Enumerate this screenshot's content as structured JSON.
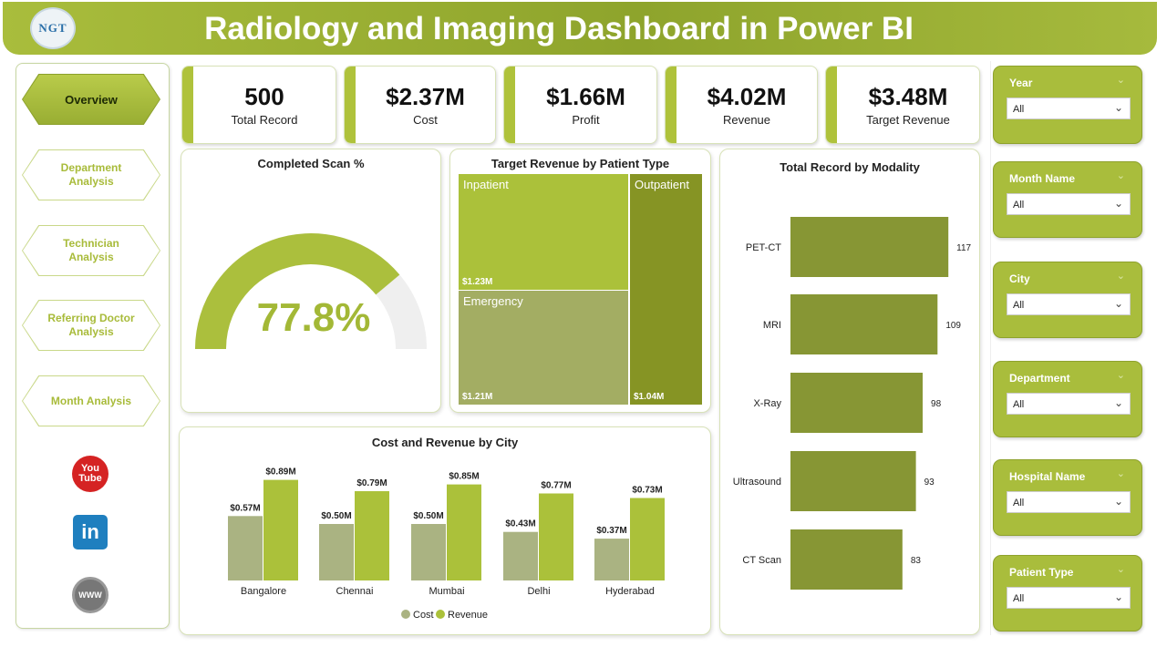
{
  "header": {
    "title": "Radiology and Imaging Dashboard in Power BI",
    "logo_text": "NGT"
  },
  "nav": {
    "items": [
      {
        "label": "Overview",
        "active": true
      },
      {
        "label": "Department Analysis",
        "active": false
      },
      {
        "label": "Technician Analysis",
        "active": false
      },
      {
        "label": "Referring Doctor Analysis",
        "active": false
      },
      {
        "label": "Month Analysis",
        "active": false
      }
    ],
    "social": {
      "youtube_icon": "youtube-icon",
      "linkedin_icon": "linkedin-icon",
      "web_icon": "globe-icon"
    },
    "youtube_text": "You Tube",
    "linkedin_text": "in",
    "web_text": "WWW"
  },
  "kpis": [
    {
      "value": "500",
      "label": "Total Record"
    },
    {
      "value": "$2.37M",
      "label": "Cost"
    },
    {
      "value": "$1.66M",
      "label": "Profit"
    },
    {
      "value": "$4.02M",
      "label": "Revenue"
    },
    {
      "value": "$3.48M",
      "label": "Target Revenue"
    }
  ],
  "gauge": {
    "title": "Completed Scan %",
    "value_text": "77.8%",
    "value": 77.8,
    "max": 100
  },
  "treemap": {
    "title": "Target Revenue by Patient Type",
    "items": [
      {
        "name": "Inpatient",
        "amount": "$1.23M"
      },
      {
        "name": "Emergency",
        "amount": "$1.21M"
      },
      {
        "name": "Outpatient",
        "amount": "$1.04M"
      }
    ]
  },
  "modality": {
    "title": "Total Record by Modality"
  },
  "city_chart": {
    "title": "Cost and Revenue by City"
  },
  "slicers": [
    {
      "label": "Year",
      "value": "All"
    },
    {
      "label": "Month Name",
      "value": "All"
    },
    {
      "label": "City",
      "value": "All"
    },
    {
      "label": "Department",
      "value": "All"
    },
    {
      "label": "Hospital Name",
      "value": "All"
    },
    {
      "label": "Patient Type",
      "value": "All"
    }
  ],
  "colors": {
    "accent": "#a9bd3c",
    "dark_olive": "#879634",
    "cost": "#aab382",
    "revenue": "#abc13a"
  },
  "chart_data": [
    {
      "type": "bar",
      "title": "Total Record by Modality",
      "orientation": "horizontal",
      "categories": [
        "PET-CT",
        "MRI",
        "X-Ray",
        "Ultrasound",
        "CT Scan"
      ],
      "values": [
        117,
        109,
        98,
        93,
        83
      ],
      "data_labels": [
        "117",
        "109",
        "98",
        "93",
        "83"
      ],
      "grid": false
    },
    {
      "type": "bar",
      "title": "Cost and Revenue by City",
      "categories": [
        "Bangalore",
        "Chennai",
        "Mumbai",
        "Delhi",
        "Hyderabad"
      ],
      "series": [
        {
          "name": "Cost",
          "values": [
            0.57,
            0.5,
            0.5,
            0.43,
            0.37
          ],
          "labels": [
            "$0.57M",
            "$0.50M",
            "$0.50M",
            "$0.43M",
            "$0.37M"
          ]
        },
        {
          "name": "Revenue",
          "values": [
            0.89,
            0.79,
            0.85,
            0.77,
            0.73
          ],
          "labels": [
            "$0.89M",
            "$0.79M",
            "$0.85M",
            "$0.77M",
            "$0.73M"
          ]
        }
      ],
      "legend": "bottom",
      "grid": false
    },
    {
      "type": "treemap",
      "title": "Target Revenue by Patient Type",
      "categories": [
        "Inpatient",
        "Emergency",
        "Outpatient"
      ],
      "values": [
        1.23,
        1.21,
        1.04
      ]
    }
  ]
}
